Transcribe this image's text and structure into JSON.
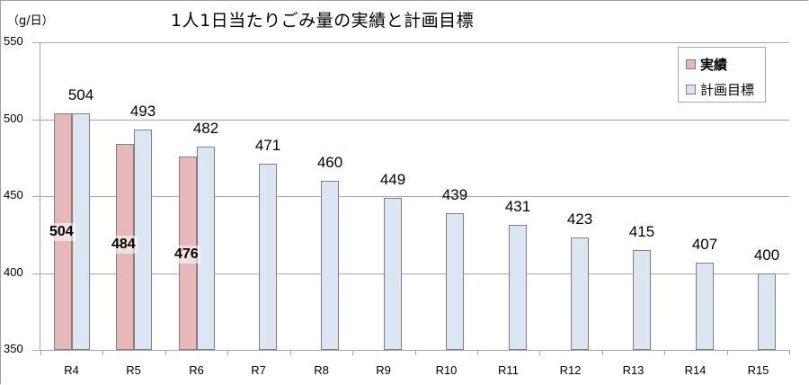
{
  "chart_data": {
    "type": "bar",
    "title": "1人1日当たりごみ量の実績と計画目標",
    "unit_label": "（g/日）",
    "xlabel": "",
    "ylabel": "（g/日）",
    "ylim": [
      350,
      550
    ],
    "yticks": [
      350,
      400,
      450,
      500,
      550
    ],
    "grid": true,
    "legend_position": "top-right",
    "categories": [
      "R4",
      "R5",
      "R6",
      "R7",
      "R8",
      "R9",
      "R10",
      "R11",
      "R12",
      "R13",
      "R14",
      "R15"
    ],
    "series": [
      {
        "name": "実績",
        "color": "#e6b9b8",
        "values": [
          504,
          484,
          476,
          null,
          null,
          null,
          null,
          null,
          null,
          null,
          null,
          null
        ]
      },
      {
        "name": "計画目標",
        "color": "#dce6f2",
        "values": [
          504,
          493,
          482,
          471,
          460,
          449,
          439,
          431,
          423,
          415,
          407,
          400
        ]
      }
    ]
  },
  "legend": {
    "actual": "実績",
    "plan": "計画目標"
  },
  "colors": {
    "actual": "#e6b9b8",
    "plan": "#dce6f2",
    "border": "#7f7f7f",
    "grid": "#a6a6a6"
  }
}
